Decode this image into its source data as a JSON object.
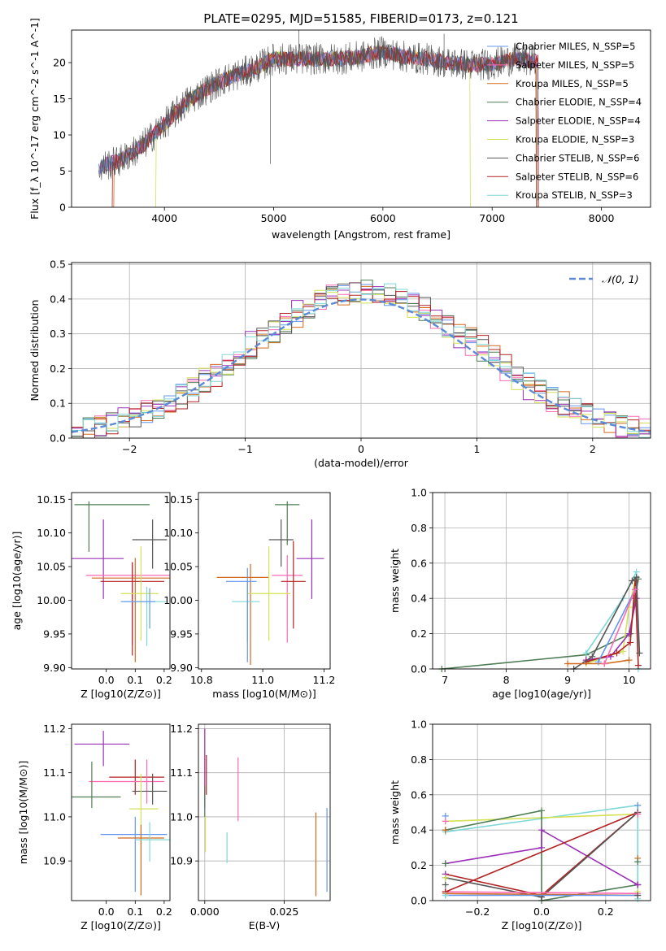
{
  "colors": {
    "Chabrier MILES": "#6495ed",
    "Salpeter MILES": "#ff69b4",
    "Kroupa MILES": "#d2691e",
    "Chabrier ELODIE": "#4e7d54",
    "Salpeter ELODIE": "#9b30b8",
    "Kroupa ELODIE": "#d4e157",
    "Chabrier STELIB": "#555555",
    "Salpeter STELIB": "#b22222",
    "Kroupa STELIB": "#7fd8d8",
    "normal_curve": "#5b8bd6"
  },
  "chart_data": [
    {
      "id": "spectrum",
      "type": "line",
      "title": "PLATE=0295, MJD=51585, FIBERID=0173, z=0.121",
      "xlabel": "wavelength [Angstrom, rest frame]",
      "ylabel": "Flux [f_λ 10^-17 erg cm^-2 s^-1 A^-1]",
      "xlim": [
        3150,
        8450
      ],
      "ylim": [
        0,
        24.5
      ],
      "xticks": [
        "4000",
        "5000",
        "6000",
        "7000",
        "8000"
      ],
      "yticks": [
        "0",
        "5",
        "10",
        "15",
        "20"
      ],
      "legend_position": "top-right",
      "legend": [
        "Chabrier MILES, N_SSP=5",
        "Salpeter MILES, N_SSP=5",
        "Kroupa MILES, N_SSP=5",
        "Chabrier ELODIE, N_SSP=4",
        "Salpeter ELODIE, N_SSP=4",
        "Kroupa ELODIE, N_SSP=3",
        "Chabrier STELIB, N_SSP=6",
        "Salpeter STELIB, N_SSP=6",
        "Kroupa STELIB, N_SSP=3"
      ],
      "data_envelope": {
        "x": [
          3400,
          3600,
          3800,
          4000,
          4200,
          4400,
          4600,
          4800,
          5000,
          5200,
          5400,
          5600,
          5800,
          6000,
          6200,
          6400,
          6600,
          6800,
          7000,
          7200,
          7400
        ],
        "y": [
          5.5,
          6.5,
          8.5,
          11.5,
          14.5,
          16.5,
          18.0,
          19.0,
          20.5,
          20.5,
          20.5,
          20.5,
          20.8,
          21.5,
          20.8,
          20.5,
          20.0,
          19.7,
          19.8,
          20.5,
          20.2
        ]
      },
      "model_cutoffs": [
        {
          "model": "Kroupa MILES",
          "xmin": 3540,
          "xmax": 7410
        },
        {
          "model": "Salpeter STELIB",
          "xmin": 3520,
          "xmax": 7420
        },
        {
          "model": "Kroupa ELODIE",
          "xmin": 3920,
          "xmax": 6800
        },
        {
          "model": "Chabrier STELIB",
          "xmin": 3400,
          "xmax": 7400
        }
      ]
    },
    {
      "id": "residuals",
      "type": "histogram",
      "xlabel": "(data-model)/error",
      "ylabel": "Normed distribution",
      "xlim": [
        -2.5,
        2.5
      ],
      "ylim": [
        0,
        0.505
      ],
      "xticks": [
        "−2",
        "−1",
        "0",
        "1",
        "2"
      ],
      "yticks": [
        "0.0",
        "0.1",
        "0.2",
        "0.3",
        "0.4",
        "0.5"
      ],
      "grid": true,
      "bin_width": 0.1,
      "legend_position": "top-right",
      "legend": [
        "𝒩(0, 1)"
      ]
    },
    {
      "id": "age_vs_Z",
      "type": "errorbar",
      "xlabel": "Z [log10(Z/Z⊙)]",
      "ylabel": "age  [log10(age/yr)]",
      "xlim": [
        -0.12,
        0.22
      ],
      "ylim": [
        9.898,
        10.16
      ],
      "xticks": [
        "0.0",
        "0.1",
        "0.2"
      ],
      "yticks": [
        "9.90",
        "9.95",
        "10.00",
        "10.05",
        "10.10",
        "10.15"
      ],
      "points": [
        {
          "model": "Chabrier ELODIE",
          "x": -0.06,
          "xerr": [
            0.05,
            0.21
          ],
          "y": 10.142,
          "yerr": [
            0.07,
            0.005
          ]
        },
        {
          "model": "Salpeter ELODIE",
          "x": -0.01,
          "xerr": [
            0.11,
            0.07
          ],
          "y": 10.062,
          "yerr": [
            0.06,
            0.058
          ]
        },
        {
          "model": "Chabrier STELIB",
          "x": 0.16,
          "xerr": [
            0.07,
            0.05
          ],
          "y": 10.09,
          "yerr": [
            0.043,
            0.03
          ]
        },
        {
          "model": "Salpeter MILES",
          "x": 0.09,
          "xerr": [
            0.16,
            0.13
          ],
          "y": 10.037,
          "yerr": [
            0.103,
            0.02
          ]
        },
        {
          "model": "Kroupa MILES",
          "x": 0.1,
          "xerr": [
            0.15,
            0.12
          ],
          "y": 10.033,
          "yerr": [
            0.125,
            0.03
          ]
        },
        {
          "model": "Salpeter STELIB",
          "x": 0.09,
          "xerr": [
            0.11,
            0.11
          ],
          "y": 10.028,
          "yerr": [
            0.11,
            0.028
          ]
        },
        {
          "model": "Kroupa ELODIE",
          "x": 0.12,
          "xerr": [
            0.07,
            0.06
          ],
          "y": 10.01,
          "yerr": [
            0.07,
            0.07
          ]
        },
        {
          "model": "Kroupa STELIB",
          "x": 0.14,
          "xerr": [
            0.08,
            0.07
          ],
          "y": 9.998,
          "yerr": [
            0.066,
            0.022
          ]
        },
        {
          "model": "Chabrier MILES",
          "x": 0.15,
          "xerr": [
            0.1,
            0.02
          ],
          "y": 9.998,
          "yerr": [
            0.04,
            0.02
          ]
        }
      ]
    },
    {
      "id": "age_vs_mass",
      "type": "errorbar",
      "xlabel": "mass [log10(M/M⊙)]",
      "ylabel": "",
      "xlim": [
        10.79,
        11.22
      ],
      "ylim": [
        9.898,
        10.16
      ],
      "xticks": [
        "10.8",
        "11.0",
        "11.2"
      ],
      "yticks": [
        "9.90",
        "9.95",
        "10.00",
        "10.05",
        "10.10",
        "10.15"
      ],
      "points": [
        {
          "model": "Chabrier ELODIE",
          "x": 11.08,
          "xerr": [
            0.04,
            0.04
          ],
          "y": 10.142,
          "yerr": [
            0.06,
            0.005
          ]
        },
        {
          "model": "Salpeter ELODIE",
          "x": 11.16,
          "xerr": [
            0.05,
            0.04
          ],
          "y": 10.062,
          "yerr": [
            0.06,
            0.058
          ]
        },
        {
          "model": "Chabrier STELIB",
          "x": 11.06,
          "xerr": [
            0.04,
            0.04
          ],
          "y": 10.09,
          "yerr": [
            0.04,
            0.03
          ]
        },
        {
          "model": "Salpeter MILES",
          "x": 11.08,
          "xerr": [
            0.05,
            0.05
          ],
          "y": 10.037,
          "yerr": [
            0.1,
            0.03
          ]
        },
        {
          "model": "Kroupa MILES",
          "x": 10.96,
          "xerr": [
            0.11,
            0.06
          ],
          "y": 10.034,
          "yerr": [
            0.13,
            0.02
          ]
        },
        {
          "model": "Salpeter STELIB",
          "x": 11.1,
          "xerr": [
            0.04,
            0.04
          ],
          "y": 10.028,
          "yerr": [
            0.07,
            0.06
          ]
        },
        {
          "model": "Kroupa ELODIE",
          "x": 11.02,
          "xerr": [
            0.07,
            0.07
          ],
          "y": 10.01,
          "yerr": [
            0.07,
            0.07
          ]
        },
        {
          "model": "Kroupa STELIB",
          "x": 10.95,
          "xerr": [
            0.05,
            0.04
          ],
          "y": 9.998,
          "yerr": [
            0.06,
            0.03
          ]
        },
        {
          "model": "Chabrier MILES",
          "x": 10.95,
          "xerr": [
            0.07,
            0.03
          ],
          "y": 10.028,
          "yerr": [
            0.12,
            0.02
          ]
        }
      ]
    },
    {
      "id": "mass_weight_vs_age",
      "type": "line",
      "xlabel": "age  [log10(age/yr)]",
      "ylabel": "mass weight",
      "xlim": [
        6.8,
        10.35
      ],
      "ylim": [
        0,
        1.0
      ],
      "xticks": [
        "7",
        "8",
        "9",
        "10"
      ],
      "yticks": [
        "0.0",
        "0.2",
        "0.4",
        "0.6",
        "0.8",
        "1.0"
      ],
      "grid": true,
      "series": [
        {
          "model": "Chabrier ELODIE",
          "x": [
            6.95,
            9.3,
            10.02,
            10.1,
            10.15
          ],
          "y": [
            0.0,
            0.08,
            0.2,
            0.4,
            0.51
          ]
        },
        {
          "model": "Kroupa STELIB",
          "x": [
            9.3,
            9.9,
            10.12,
            10.15
          ],
          "y": [
            0.09,
            0.4,
            0.55,
            0.0
          ]
        },
        {
          "model": "Kroupa ELODIE",
          "x": [
            9.3,
            9.9,
            10.0,
            10.1
          ],
          "y": [
            0.03,
            0.1,
            0.35,
            0.5
          ]
        },
        {
          "model": "Salpeter ELODIE",
          "x": [
            9.3,
            9.7,
            10.0,
            10.12
          ],
          "y": [
            0.05,
            0.07,
            0.2,
            0.4
          ]
        },
        {
          "model": "Salpeter STELIB",
          "x": [
            9.3,
            9.8,
            10.02,
            10.1,
            10.15
          ],
          "y": [
            0.04,
            0.09,
            0.15,
            0.5,
            0.02
          ]
        },
        {
          "model": "Chabrier STELIB",
          "x": [
            9.1,
            9.4,
            10.05,
            10.12,
            10.17
          ],
          "y": [
            0.0,
            0.07,
            0.5,
            0.52,
            0.09
          ]
        },
        {
          "model": "Kroupa MILES",
          "x": [
            9.0,
            9.6,
            10.0
          ],
          "y": [
            0.03,
            0.03,
            0.05
          ]
        },
        {
          "model": "Chabrier MILES",
          "x": [
            9.5,
            10.1
          ],
          "y": [
            0.04,
            0.45
          ]
        },
        {
          "model": "Salpeter MILES",
          "x": [
            9.6,
            10.1
          ],
          "y": [
            0.03,
            0.45
          ]
        }
      ]
    },
    {
      "id": "mass_vs_Z",
      "type": "errorbar",
      "xlabel": "Z [log10(Z/Z⊙)]",
      "ylabel": "mass [log10(M/M⊙)]",
      "xlim": [
        -0.12,
        0.22
      ],
      "ylim": [
        10.81,
        11.21
      ],
      "xticks": [
        "0.0",
        "0.1",
        "0.2"
      ],
      "yticks": [
        "10.9",
        "11.0",
        "11.1",
        "11.2"
      ],
      "points": [
        {
          "model": "Salpeter ELODIE",
          "x": -0.01,
          "xerr": [
            0.1,
            0.09
          ],
          "y": 11.165,
          "yerr": [
            0.05,
            0.03
          ]
        },
        {
          "model": "Salpeter STELIB",
          "x": 0.1,
          "xerr": [
            0.09,
            0.1
          ],
          "y": 11.09,
          "yerr": [
            0.04,
            0.04
          ]
        },
        {
          "model": "Salpeter MILES",
          "x": 0.14,
          "xerr": [
            0.2,
            0.06
          ],
          "y": 11.08,
          "yerr": [
            0.05,
            0.05
          ]
        },
        {
          "model": "Chabrier ELODIE",
          "x": -0.05,
          "xerr": [
            0.07,
            0.1
          ],
          "y": 11.045,
          "yerr": [
            0.025,
            0.08
          ]
        },
        {
          "model": "Chabrier STELIB",
          "x": 0.16,
          "xerr": [
            0.07,
            0.05
          ],
          "y": 11.058,
          "yerr": [
            0.03,
            0.04
          ]
        },
        {
          "model": "Kroupa ELODIE",
          "x": 0.12,
          "xerr": [
            0.04,
            0.06
          ],
          "y": 11.018,
          "yerr": [
            0.08,
            0.08
          ]
        },
        {
          "model": "Chabrier MILES",
          "x": 0.1,
          "xerr": [
            0.12,
            0.11
          ],
          "y": 10.96,
          "yerr": [
            0.13,
            0.04
          ]
        },
        {
          "model": "Kroupa MILES",
          "x": 0.12,
          "xerr": [
            0.08,
            0.08
          ],
          "y": 10.952,
          "yerr": [
            0.13,
            0.03
          ]
        },
        {
          "model": "Kroupa STELIB",
          "x": 0.15,
          "xerr": [
            0.05,
            0.07
          ],
          "y": 10.948,
          "yerr": [
            0.05,
            0.04
          ]
        }
      ]
    },
    {
      "id": "mass_vs_EBV",
      "type": "errorbar",
      "xlabel": "E(B-V)",
      "ylabel": "",
      "xlim": [
        -0.002,
        0.0395
      ],
      "ylim": [
        10.81,
        11.21
      ],
      "xticks": [
        "0.000",
        "0.025"
      ],
      "yticks": [
        "10.9",
        "11.0",
        "11.1",
        "11.2"
      ],
      "grid": true,
      "points": [
        {
          "model": "Salpeter ELODIE",
          "x": 0.0,
          "xerr": [
            0,
            0
          ],
          "y": 11.12,
          "yerr": [
            0.1,
            0.08
          ]
        },
        {
          "model": "Salpeter STELIB",
          "x": 0.0005,
          "xerr": [
            0,
            0
          ],
          "y": 11.09,
          "yerr": [
            0.04,
            0.05
          ]
        },
        {
          "model": "Chabrier ELODIE",
          "x": 0.0,
          "xerr": [
            0,
            0
          ],
          "y": 11.05,
          "yerr": [
            0.05,
            0.02
          ]
        },
        {
          "model": "Kroupa ELODIE",
          "x": 0.0002,
          "xerr": [
            0,
            0
          ],
          "y": 10.96,
          "yerr": [
            0.04,
            0.04
          ]
        },
        {
          "model": "Salpeter MILES",
          "x": 0.0105,
          "xerr": [
            0,
            0
          ],
          "y": 11.07,
          "yerr": [
            0.08,
            0.065
          ]
        },
        {
          "model": "Kroupa STELIB",
          "x": 0.007,
          "xerr": [
            0,
            0
          ],
          "y": 10.93,
          "yerr": [
            0.035,
            0.035
          ]
        },
        {
          "model": "Kroupa MILES",
          "x": 0.035,
          "xerr": [
            0,
            0
          ],
          "y": 10.91,
          "yerr": [
            0.09,
            0.1
          ]
        },
        {
          "model": "Chabrier MILES",
          "x": 0.0385,
          "xerr": [
            0,
            0
          ],
          "y": 10.93,
          "yerr": [
            0.1,
            0.09
          ]
        }
      ]
    },
    {
      "id": "mass_weight_vs_Z",
      "type": "line",
      "xlabel": "Z [log10(Z/Z⊙)]",
      "ylabel": "mass weight",
      "xlim": [
        -0.34,
        0.34
      ],
      "ylim": [
        0,
        1.0
      ],
      "xticks": [
        "−0.2",
        "0.0",
        "0.2"
      ],
      "yticks": [
        "0.0",
        "0.2",
        "0.4",
        "0.6",
        "0.8",
        "1.0"
      ],
      "grid": true,
      "series": [
        {
          "model": "Kroupa STELIB",
          "x": [
            -0.3,
            0.3,
            0.3
          ],
          "y": [
            0.39,
            0.54,
            0.01
          ]
        },
        {
          "model": "Kroupa ELODIE",
          "x": [
            -0.3,
            0.3
          ],
          "y": [
            0.45,
            0.49
          ]
        },
        {
          "model": "Chabrier ELODIE",
          "x": [
            -0.3,
            0.0,
            0.0,
            0.3
          ],
          "y": [
            0.4,
            0.51,
            0.0,
            0.09
          ]
        },
        {
          "model": "Salpeter ELODIE",
          "x": [
            -0.3,
            0.0,
            0.0,
            0.3
          ],
          "y": [
            0.21,
            0.3,
            0.4,
            0.09
          ]
        },
        {
          "model": "Salpeter STELIB",
          "x": [
            -0.3,
            0.0,
            0.3,
            -0.3
          ],
          "y": [
            0.15,
            0.03,
            0.5,
            0.05
          ]
        },
        {
          "model": "Chabrier STELIB",
          "x": [
            -0.3,
            0.0,
            0.3
          ],
          "y": [
            0.13,
            0.02,
            0.5
          ]
        },
        {
          "model": "Kroupa MILES",
          "x": [
            -0.3,
            0.3
          ],
          "y": [
            0.04,
            0.03
          ]
        },
        {
          "model": "Salpeter MILES",
          "x": [
            -0.3,
            0.3
          ],
          "y": [
            0.05,
            0.04
          ]
        },
        {
          "model": "Chabrier MILES",
          "x": [
            -0.3,
            0.3
          ],
          "y": [
            0.03,
            0.03
          ]
        }
      ],
      "stacked_markers": [
        {
          "x": -0.3,
          "y": [
            0.48,
            0.45,
            0.4,
            0.21,
            0.15,
            0.13,
            0.09,
            0.05,
            0.03
          ]
        },
        {
          "x": 0.3,
          "y": [
            0.54,
            0.49,
            0.24,
            0.22,
            0.09,
            0.05,
            0.03
          ]
        }
      ]
    }
  ]
}
